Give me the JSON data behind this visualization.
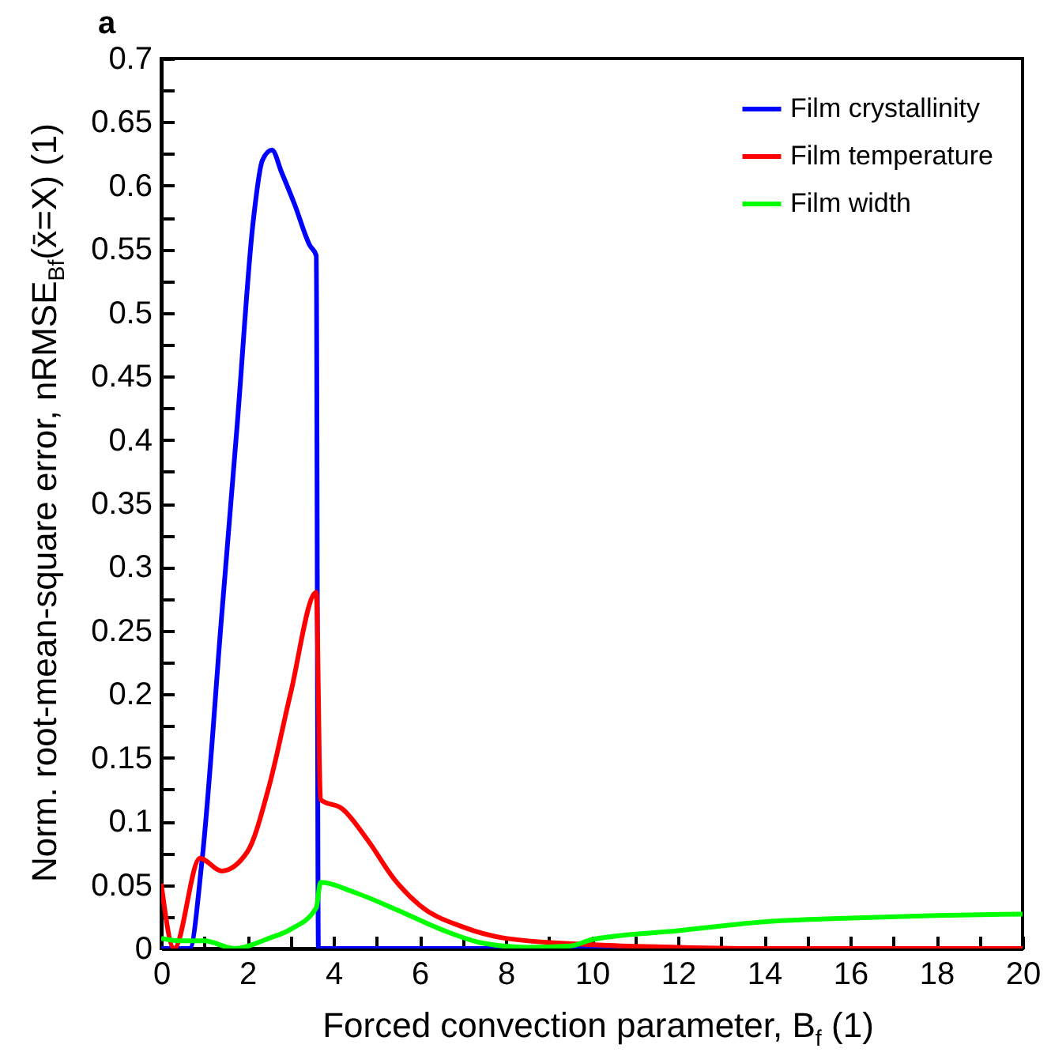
{
  "chart_data": {
    "type": "line",
    "title": "a",
    "xlabel": "Forced convection parameter, B$_{f}$ (1)",
    "ylabel": "Norm. root-mean-square error, nRMSE$_{Bf}$(x̄=X) (1)",
    "series": [
      {
        "name": "Film crystallinity",
        "color": "#0000ff",
        "x": [
          0,
          0.66,
          0.95,
          1.4,
          1.76,
          2.13,
          2.35,
          2.57,
          2.8,
          3.1,
          3.45,
          3.6,
          3.65,
          20
        ],
        "values": [
          0,
          0,
          0.07,
          0.26,
          0.41,
          0.57,
          0.62,
          0.628,
          0.61,
          0.585,
          0.553,
          0.545,
          0,
          0
        ]
      },
      {
        "name": "Film temperature",
        "color": "#ff0000",
        "x": [
          0,
          0.3,
          0.9,
          1.4,
          2,
          2.5,
          3,
          3.6,
          3.7,
          4.2,
          4.8,
          5.4,
          6,
          7,
          8,
          10,
          12,
          14,
          20
        ],
        "values": [
          0.051,
          0,
          0.071,
          0.061,
          0.076,
          0.127,
          0.2,
          0.28,
          0.117,
          0.11,
          0.085,
          0.055,
          0.034,
          0.017,
          0.008,
          0.003,
          0.001,
          0,
          0
        ]
      },
      {
        "name": "Film width",
        "color": "#00ff00",
        "x": [
          0,
          0.5,
          1,
          1.7,
          2.5,
          3,
          3.6,
          3.7,
          4.5,
          5.5,
          6.5,
          7.5,
          8.5,
          9.5,
          10,
          12,
          14,
          16,
          18,
          20
        ],
        "values": [
          0.008,
          0.006,
          0.006,
          0,
          0.008,
          0.015,
          0.032,
          0.052,
          0.044,
          0.03,
          0.015,
          0.004,
          0.001,
          0.002,
          0.007,
          0.014,
          0.021,
          0.024,
          0.026,
          0.027
        ]
      }
    ],
    "xlim": [
      0,
      20
    ],
    "xticks": [
      0,
      {
        "value": 1,
        "label": null
      },
      2,
      {
        "value": 3,
        "label": null
      },
      4,
      {
        "value": 5,
        "label": null
      },
      6,
      {
        "value": 7,
        "label": null
      },
      8,
      {
        "value": 9,
        "label": null
      },
      10,
      {
        "value": 11,
        "label": null
      },
      12,
      {
        "value": 13,
        "label": null
      },
      14,
      {
        "value": 15,
        "label": null
      },
      16,
      {
        "value": 17,
        "label": null
      },
      18,
      {
        "value": 19,
        "label": null
      },
      20
    ],
    "ylim": [
      0,
      0.7
    ],
    "yticks": [
      0,
      {
        "value": 0.025,
        "label": null
      },
      0.05,
      {
        "value": 0.075,
        "label": null
      },
      0.1,
      {
        "value": 0.125,
        "label": null
      },
      0.15,
      {
        "value": 0.175,
        "label": null
      },
      0.2,
      {
        "value": 0.225,
        "label": null
      },
      0.25,
      {
        "value": 0.275,
        "label": null
      },
      0.3,
      {
        "value": 0.325,
        "label": null
      },
      0.35,
      {
        "value": 0.375,
        "label": null
      },
      0.4,
      {
        "value": 0.425,
        "label": null
      },
      0.45,
      {
        "value": 0.475,
        "label": null
      },
      0.5,
      {
        "value": 0.525,
        "label": null
      },
      0.55,
      {
        "value": 0.575,
        "label": null
      },
      0.6,
      {
        "value": 0.625,
        "label": null
      },
      0.65,
      {
        "value": 0.675,
        "label": null
      },
      0.7
    ],
    "legend": "top right",
    "grid": false,
    "line_style": "solid",
    "marker": "none"
  }
}
